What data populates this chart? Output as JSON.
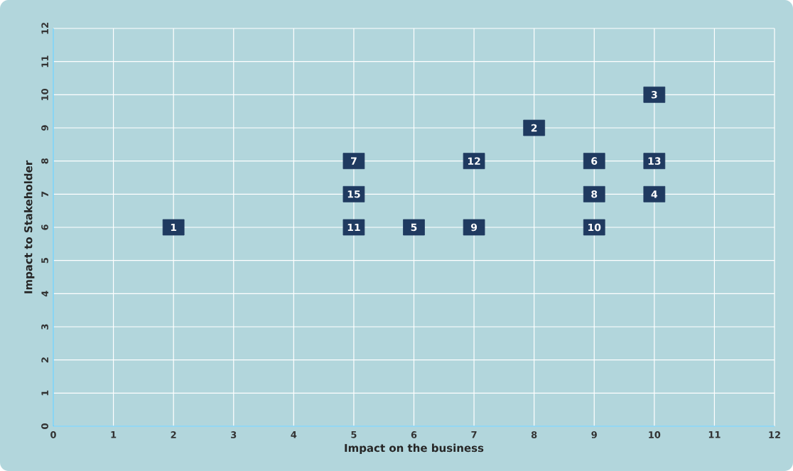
{
  "chart_data": {
    "type": "scatter",
    "xlabel": "Impact on the business",
    "ylabel": "Impact to Stakeholder",
    "x": [
      2,
      8,
      10,
      10,
      6,
      9,
      5,
      9,
      7,
      9,
      5,
      7,
      10,
      5
    ],
    "values": [
      6,
      9,
      10,
      7,
      6,
      8,
      8,
      7,
      6,
      6,
      6,
      8,
      8,
      7
    ],
    "color": "#1f3a60",
    "marker": "square",
    "xlim": [
      0,
      12
    ],
    "ylim": [
      0,
      12
    ],
    "xticks": [
      0,
      1,
      2,
      3,
      4,
      5,
      6,
      7,
      8,
      9,
      10,
      11,
      12
    ],
    "yticks": [
      0,
      1,
      2,
      3,
      4,
      5,
      6,
      7,
      8,
      9,
      10,
      11,
      12
    ],
    "grid": true,
    "annotations": [
      {
        "text": "1",
        "x": 2,
        "y": 6
      },
      {
        "text": "2",
        "x": 8,
        "y": 9
      },
      {
        "text": "3",
        "x": 10,
        "y": 10
      },
      {
        "text": "4",
        "x": 10,
        "y": 7
      },
      {
        "text": "5",
        "x": 6,
        "y": 6
      },
      {
        "text": "6",
        "x": 9,
        "y": 8
      },
      {
        "text": "7",
        "x": 5,
        "y": 8
      },
      {
        "text": "8",
        "x": 9,
        "y": 7
      },
      {
        "text": "9",
        "x": 7,
        "y": 6
      },
      {
        "text": "10",
        "x": 9,
        "y": 6
      },
      {
        "text": "11",
        "x": 5,
        "y": 6
      },
      {
        "text": "12",
        "x": 7,
        "y": 8
      },
      {
        "text": "13",
        "x": 10,
        "y": 8
      },
      {
        "text": "15",
        "x": 5,
        "y": 7
      }
    ]
  }
}
